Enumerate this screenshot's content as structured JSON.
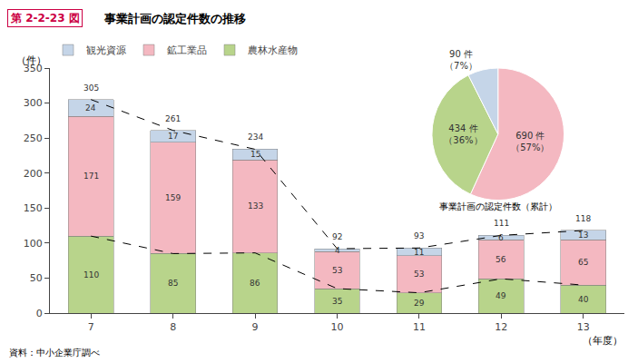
{
  "chart_data": [
    {
      "type": "bar",
      "stacked": true,
      "title": "事業計画の認定件数の推移",
      "annotations": [
        {
          "text": "第 2-2-23 図",
          "color": "#cc0044"
        },
        {
          "text": "資料：中小企業庁調べ"
        }
      ],
      "xlabel": "（年度）",
      "ylabel": "（件）",
      "categories": [
        "7",
        "8",
        "9",
        "10",
        "11",
        "12",
        "13"
      ],
      "series": [
        {
          "name": "農林水産物",
          "color": "#b8d48b",
          "values": [
            110,
            85,
            86,
            35,
            29,
            49,
            40
          ],
          "data_labels": true
        },
        {
          "name": "鉱工業品",
          "color": "#f4b8c1",
          "values": [
            171,
            159,
            133,
            53,
            53,
            56,
            65
          ],
          "data_labels": true
        },
        {
          "name": "観光資源",
          "color": "#c5d5e8",
          "values": [
            24,
            17,
            15,
            4,
            11,
            6,
            13
          ],
          "data_labels": true
        },
        {
          "type": "line",
          "line_style": "dashed",
          "color": "#000000",
          "values": [
            110,
            85,
            86,
            35,
            29,
            49,
            40
          ]
        },
        {
          "type": "line",
          "line_style": "dashed",
          "color": "#000000",
          "values": [
            305,
            261,
            234,
            92,
            93,
            111,
            118
          ],
          "data_labels": true
        }
      ],
      "ylim": [
        0,
        350
      ],
      "yticks": [
        0,
        50,
        100,
        150,
        200,
        250,
        300,
        350
      ],
      "grid": false,
      "legend": "top"
    },
    {
      "type": "pie",
      "title": "事業計画の認定件数（累計）",
      "values": [
        690,
        434,
        90
      ],
      "colors": [
        "#f4b8c1",
        "#b8d48b",
        "#c5d5e8"
      ],
      "value_labels": [
        "690 件\n（57%）",
        "434 件\n（36%）",
        "90 件\n（7%）"
      ],
      "data_labels": true
    }
  ]
}
